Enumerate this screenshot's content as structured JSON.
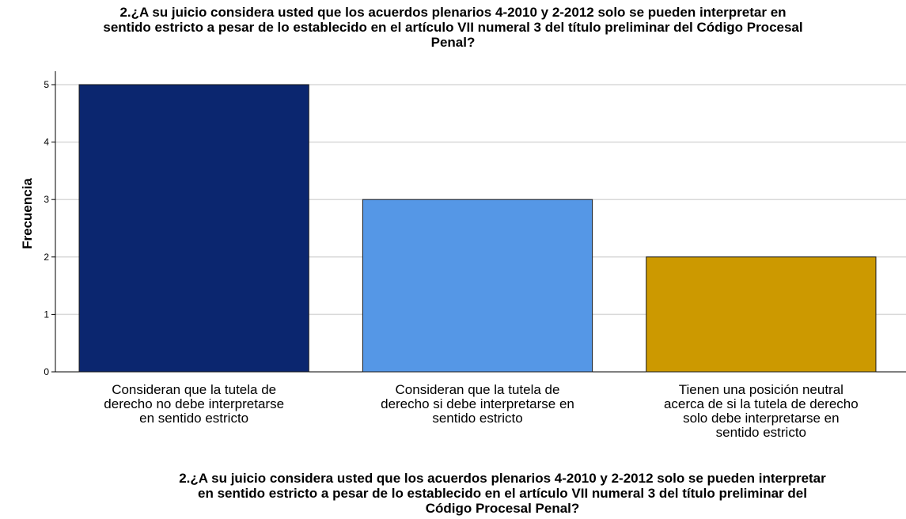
{
  "chart_data": {
    "type": "bar",
    "title_lines": [
      "2.¿A su juicio considera usted que los acuerdos plenarios 4-2010 y 2-2012 solo se pueden interpretar en",
      "sentido estricto a pesar de lo establecido en el artículo VII numeral 3 del título preliminar del Código Procesal",
      "Penal?"
    ],
    "xlabel_lines": [
      "2.¿A su juicio considera usted que los acuerdos plenarios 4-2010 y 2-2012 solo se pueden interpretar",
      "en sentido estricto a pesar de lo establecido en el artículo VII numeral 3 del título preliminar del",
      "Código Procesal Penal?"
    ],
    "ylabel": "Frecuencia",
    "ylim": [
      0,
      5
    ],
    "yticks": [
      "0",
      "1",
      "2",
      "3",
      "4",
      "5"
    ],
    "grid": true,
    "categories": [
      [
        "Consideran que la tutela de",
        "derecho no debe interpretarse",
        "en sentido estricto"
      ],
      [
        "Consideran que la tutela de",
        "derecho si debe interpretarse en",
        "sentido estricto"
      ],
      [
        "Tienen una posición neutral",
        "acerca de si la tutela de derecho",
        "solo debe interpretarse en",
        "sentido estricto"
      ]
    ],
    "values": [
      5,
      3,
      2
    ],
    "colors": [
      "#0b266f",
      "#5597e6",
      "#cc9900"
    ]
  }
}
